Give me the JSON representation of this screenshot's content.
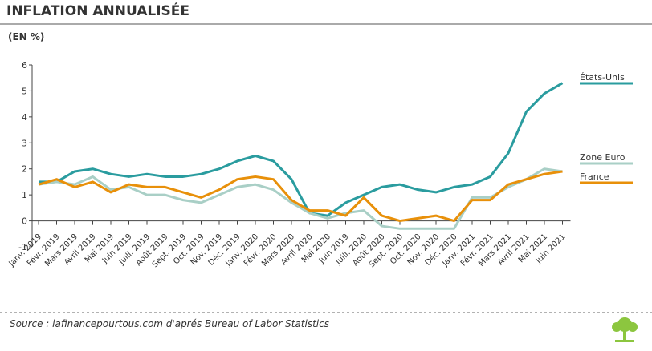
{
  "chart_data": {
    "type": "line",
    "title": "INFLATION ANNUALISÉE",
    "subtitle": "(EN %)",
    "categories": [
      "Janv. 2019",
      "Févr. 2019",
      "Mars 2019",
      "Avril 2019",
      "Mai 2019",
      "Juin 2019",
      "Juill. 2019",
      "Août 2019",
      "Sept. 2019",
      "Oct. 2019",
      "Nov. 2019",
      "Déc. 2019",
      "Janv. 2020",
      "Févr. 2020",
      "Mars 2020",
      "Avril 2020",
      "Mai 2020",
      "Juin 2019",
      "Juill. 2020",
      "Août 2020",
      "Sept. 2020",
      "Oct. 2020",
      "Nov. 2020",
      "Déc. 2020",
      "Janv. 2021",
      "Févr. 2021",
      "Mars 2021",
      "Avril 2021",
      "Mai 2021",
      "Juin 2021"
    ],
    "series": [
      {
        "name": "États-Unis",
        "color": "#2a9c9f",
        "values": [
          1.5,
          1.5,
          1.9,
          2.0,
          1.8,
          1.7,
          1.8,
          1.7,
          1.7,
          1.8,
          2.0,
          2.3,
          2.5,
          2.3,
          1.6,
          0.3,
          0.2,
          0.7,
          1.0,
          1.3,
          1.4,
          1.2,
          1.1,
          1.3,
          1.4,
          1.7,
          2.6,
          4.2,
          4.9,
          5.3
        ]
      },
      {
        "name": "Zone Euro",
        "color": "#a9cfc6",
        "values": [
          1.4,
          1.5,
          1.4,
          1.7,
          1.2,
          1.3,
          1.0,
          1.0,
          0.8,
          0.7,
          1.0,
          1.3,
          1.4,
          1.2,
          0.7,
          0.3,
          0.1,
          0.3,
          0.4,
          -0.2,
          -0.3,
          -0.3,
          -0.3,
          -0.3,
          0.9,
          0.9,
          1.3,
          1.6,
          2.0,
          1.9
        ]
      },
      {
        "name": "France",
        "color": "#e8900a",
        "values": [
          1.4,
          1.6,
          1.3,
          1.5,
          1.1,
          1.4,
          1.3,
          1.3,
          1.1,
          0.9,
          1.2,
          1.6,
          1.7,
          1.6,
          0.8,
          0.4,
          0.4,
          0.2,
          0.9,
          0.2,
          0.0,
          0.1,
          0.2,
          0.0,
          0.8,
          0.8,
          1.4,
          1.6,
          1.8,
          1.9
        ]
      }
    ],
    "ylim": [
      -1,
      6
    ],
    "yticks": [
      -1,
      0,
      1,
      2,
      3,
      4,
      5,
      6
    ],
    "source": "Source : lafinancepourtous.com d'aprés Bureau of Labor Statistics"
  }
}
